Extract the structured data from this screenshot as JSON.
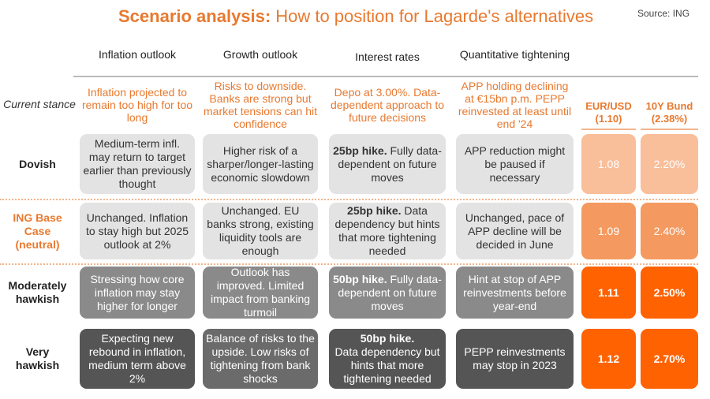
{
  "title": {
    "bold": "Scenario analysis:",
    "rest": "How to position for Lagarde's alternatives"
  },
  "source": "Source: ING",
  "colors": {
    "accent": "#e8792f",
    "dovish": "#f9be9a",
    "base": "#f49a60",
    "hawkish": "#ff6200"
  },
  "headers": [
    "Inflation outlook",
    "Growth outlook",
    "Interest rates",
    "Quantitative tightening"
  ],
  "kpi_headers": [
    "EUR/USD (1.10)",
    "10Y Bund (2.38%)"
  ],
  "current": {
    "label": "Current stance",
    "cells": [
      "Inflation projected to remain too high for too long",
      "Risks to downside. Banks are strong but market tensions can hit confidence",
      "Depo at 3.00%. Data-dependent approach to future decisions",
      "APP holding declining at €15bn p.m. PEPP reinvested at least until end '24"
    ]
  },
  "rows": [
    {
      "label": "Dovish",
      "inflation": "Medium-term infl. may return to target earlier than previously thought",
      "growth": "Higher risk of a sharper/longer-lasting economic slowdown",
      "rates_bold": "25bp hike.",
      "rates": " Fully data-dependent on future moves",
      "qt": "APP reduction might be paused if necessary",
      "eurusd": "1.08",
      "bund": "2.20%"
    },
    {
      "label": "ING Base Case (neutral)",
      "inflation": "Unchanged. Inflation to stay high but 2025 outlook at 2%",
      "growth": "Unchanged. EU banks strong, existing liquidity tools are enough",
      "rates_bold": "25bp hike.",
      "rates": " Data dependency but hints that more tightening needed",
      "qt": "Unchanged, pace of APP decline will be decided in June",
      "eurusd": "1.09",
      "bund": "2.40%"
    },
    {
      "label": "Moderately hawkish",
      "inflation": "Stressing how core inflation may stay higher for longer",
      "growth": "Outlook has improved. Limited impact from banking turmoil",
      "rates_bold": "50bp hike.",
      "rates": " Fully data-dependent on future moves",
      "qt": "Hint at stop of APP reinvestments before year-end",
      "eurusd": "1.11",
      "bund": "2.50%"
    },
    {
      "label": "Very hawkish",
      "inflation": "Expecting new rebound in inflation, medium term above 2%",
      "growth": "Balance of risks to the upside. Low risks of tightening from bank shocks",
      "rates_bold": "50bp hike.",
      "rates": " Data dependency but hints that more tightening needed",
      "qt": "PEPP reinvestments may stop in 2023",
      "eurusd": "1.12",
      "bund": "2.70%"
    }
  ]
}
